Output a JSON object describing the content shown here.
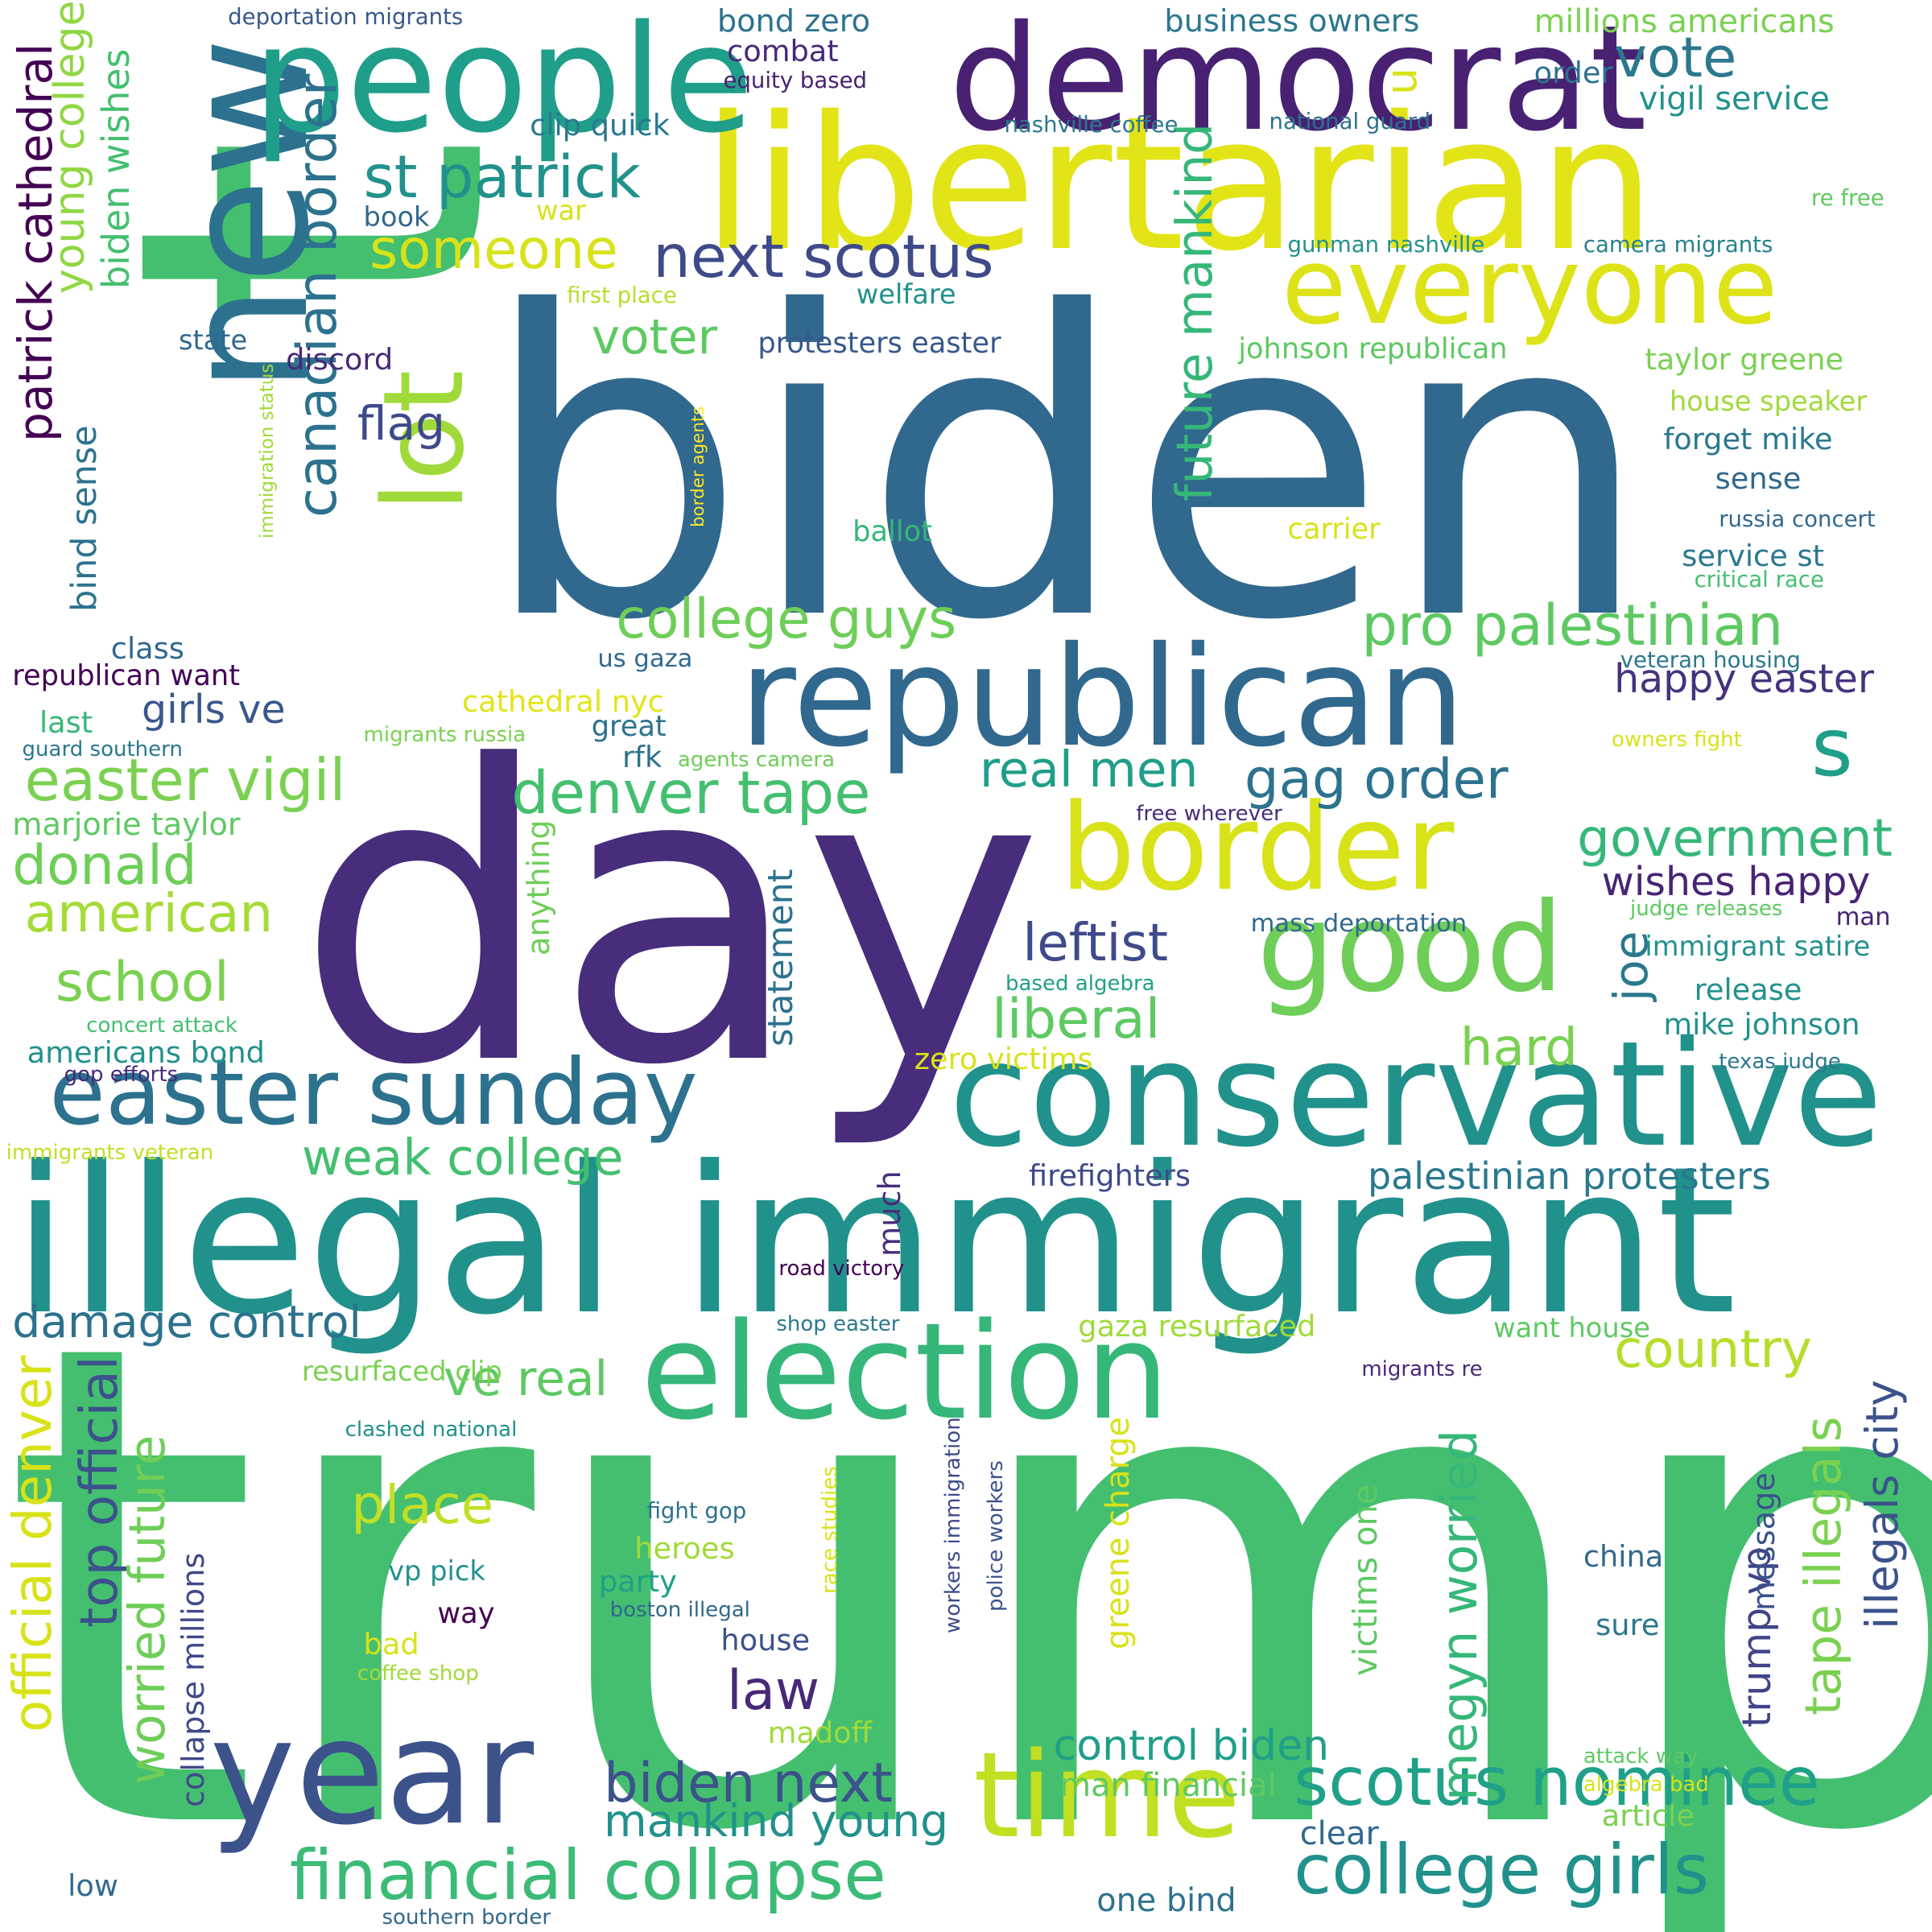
{
  "words": [
    {
      "text": "biden",
      "color": "#31688e"
    },
    {
      "text": "trump",
      "color": "#44bf70"
    },
    {
      "text": "day",
      "color": "#472d7b"
    },
    {
      "text": "t",
      "color": "#44bf70"
    },
    {
      "text": "libertarian",
      "color": "#e2e418"
    },
    {
      "text": "illegal immigrant",
      "color": "#21918c"
    },
    {
      "text": "new",
      "color": "#2c728e"
    },
    {
      "text": "democrat",
      "color": "#482173"
    },
    {
      "text": "people",
      "color": "#1f9e89"
    },
    {
      "text": "republican",
      "color": "#31688e"
    },
    {
      "text": "conservative",
      "color": "#21918c"
    },
    {
      "text": "year",
      "color": "#3b528b"
    },
    {
      "text": "election",
      "color": "#35b779"
    },
    {
      "text": "time",
      "color": "#c2df23"
    },
    {
      "text": "border",
      "color": "#d8e219"
    },
    {
      "text": "good",
      "color": "#6ece58"
    },
    {
      "text": "everyone",
      "color": "#dde318"
    },
    {
      "text": "easter sunday",
      "color": "#2c728e"
    },
    {
      "text": "lot",
      "color": "#9fda3a"
    },
    {
      "text": "s",
      "color": "#1f9e89"
    },
    {
      "text": "u",
      "color": "#d8e219"
    },
    {
      "text": "financial collapse",
      "color": "#3bbb75"
    },
    {
      "text": "college girls",
      "color": "#21918c"
    },
    {
      "text": "scotus nominee",
      "color": "#1fa088"
    },
    {
      "text": "st patrick",
      "color": "#21918c"
    },
    {
      "text": "next scotus",
      "color": "#3e4a89"
    },
    {
      "text": "vote",
      "color": "#2a788e"
    },
    {
      "text": "someone",
      "color": "#d8e219"
    },
    {
      "text": "college guys",
      "color": "#6ece58"
    },
    {
      "text": "pro palestinian",
      "color": "#5ec962"
    },
    {
      "text": "easter vigil",
      "color": "#7ad151"
    },
    {
      "text": "denver tape",
      "color": "#44bf70"
    },
    {
      "text": "gag order",
      "color": "#2c728e"
    },
    {
      "text": "real men",
      "color": "#1f9e89"
    },
    {
      "text": "government",
      "color": "#35b779"
    },
    {
      "text": "american",
      "color": "#a5db36"
    },
    {
      "text": "school",
      "color": "#7ad151"
    },
    {
      "text": "donald",
      "color": "#6ece58"
    },
    {
      "text": "leftist",
      "color": "#3e4a89"
    },
    {
      "text": "liberal",
      "color": "#5ec962"
    },
    {
      "text": "hard",
      "color": "#7ad151"
    },
    {
      "text": "country",
      "color": "#b5de2b"
    },
    {
      "text": "weak college",
      "color": "#44bf70"
    },
    {
      "text": "damage control",
      "color": "#2c728e"
    },
    {
      "text": "ve real",
      "color": "#5ec962"
    },
    {
      "text": "place",
      "color": "#c2df23"
    },
    {
      "text": "law",
      "color": "#482878"
    },
    {
      "text": "biden next",
      "color": "#3b528b"
    },
    {
      "text": "mankind young",
      "color": "#21918c"
    },
    {
      "text": "control biden",
      "color": "#1f9e89"
    },
    {
      "text": "flag",
      "color": "#3e4a89"
    },
    {
      "text": "voter",
      "color": "#5ec962"
    },
    {
      "text": "girls ve",
      "color": "#38588c"
    },
    {
      "text": "happy easter",
      "color": "#46327e"
    },
    {
      "text": "wishes happy",
      "color": "#482475"
    },
    {
      "text": "palestinian protesters",
      "color": "#2a788e"
    },
    {
      "text": "patrick cathedral",
      "color": "#440154"
    },
    {
      "text": "canadian border",
      "color": "#2c728e"
    },
    {
      "text": "future mankind",
      "color": "#35b779"
    },
    {
      "text": "young college",
      "color": "#90d743"
    },
    {
      "text": "biden wishes",
      "color": "#44bf70"
    },
    {
      "text": "bind sense",
      "color": "#2c728e"
    },
    {
      "text": "official denver",
      "color": "#d8e219"
    },
    {
      "text": "top official",
      "color": "#3b528b"
    },
    {
      "text": "worried future",
      "color": "#6ece58"
    },
    {
      "text": "megyn worried",
      "color": "#35b779"
    },
    {
      "text": "tape illegals",
      "color": "#7ad151"
    },
    {
      "text": "illegals city",
      "color": "#3b528b"
    },
    {
      "text": "trump vp",
      "color": "#414487"
    },
    {
      "text": "joe",
      "color": "#2a788e"
    },
    {
      "text": "statement",
      "color": "#2c728e"
    },
    {
      "text": "anything",
      "color": "#6ece58"
    },
    {
      "text": "much",
      "color": "#472d7b"
    },
    {
      "text": "greene charge",
      "color": "#d8e219"
    },
    {
      "text": "victims one",
      "color": "#5ec962"
    },
    {
      "text": "collapse millions",
      "color": "#3e4a89"
    },
    {
      "text": "message",
      "color": "#3b528b"
    },
    {
      "text": "bond zero",
      "color": "#2c728e"
    },
    {
      "text": "business owners",
      "color": "#2a788e"
    },
    {
      "text": "millions americans",
      "color": "#7ad151"
    },
    {
      "text": "vigil service",
      "color": "#21918c"
    },
    {
      "text": "order",
      "color": "#2c728e"
    },
    {
      "text": "combat",
      "color": "#482878"
    },
    {
      "text": "equity based",
      "color": "#482173"
    },
    {
      "text": "clip quick",
      "color": "#2a788e"
    },
    {
      "text": "nashville coffee",
      "color": "#2a788e"
    },
    {
      "text": "national guard",
      "color": "#2c728e"
    },
    {
      "text": "deportation migrants",
      "color": "#38588c"
    },
    {
      "text": "book",
      "color": "#31688e"
    },
    {
      "text": "war",
      "color": "#d8e219"
    },
    {
      "text": "first place",
      "color": "#b5de2b"
    },
    {
      "text": "welfare",
      "color": "#21918c"
    },
    {
      "text": "gunman nashville",
      "color": "#21918c"
    },
    {
      "text": "camera migrants",
      "color": "#26828e"
    },
    {
      "text": "re free",
      "color": "#5ec962"
    },
    {
      "text": "state",
      "color": "#31688e"
    },
    {
      "text": "discord",
      "color": "#482878"
    },
    {
      "text": "protesters easter",
      "color": "#38588c"
    },
    {
      "text": "johnson republican",
      "color": "#5ec962"
    },
    {
      "text": "taylor greene",
      "color": "#7ad151"
    },
    {
      "text": "house speaker",
      "color": "#a0da39"
    },
    {
      "text": "forget mike",
      "color": "#2a788e"
    },
    {
      "text": "sense",
      "color": "#31688e"
    },
    {
      "text": "russia concert",
      "color": "#31688e"
    },
    {
      "text": "ballot",
      "color": "#35b779"
    },
    {
      "text": "carrier",
      "color": "#d8e219"
    },
    {
      "text": "service st",
      "color": "#2a788e"
    },
    {
      "text": "critical race",
      "color": "#44bf70"
    },
    {
      "text": "immigration status",
      "color": "#a0da39"
    },
    {
      "text": "border agents",
      "color": "#fde725"
    },
    {
      "text": "class",
      "color": "#31688e"
    },
    {
      "text": "republican want",
      "color": "#440154"
    },
    {
      "text": "us gaza",
      "color": "#31688e"
    },
    {
      "text": "veteran housing",
      "color": "#2a788e"
    },
    {
      "text": "cathedral nyc",
      "color": "#e2e418"
    },
    {
      "text": "last",
      "color": "#35b779"
    },
    {
      "text": "great",
      "color": "#2c728e"
    },
    {
      "text": "migrants russia",
      "color": "#7ad151"
    },
    {
      "text": "rfk",
      "color": "#2c728e"
    },
    {
      "text": "agents camera",
      "color": "#6ece58"
    },
    {
      "text": "owners fight",
      "color": "#d8e219"
    },
    {
      "text": "guard southern",
      "color": "#2a788e"
    },
    {
      "text": "marjorie taylor",
      "color": "#5ec962"
    },
    {
      "text": "free wherever",
      "color": "#472d7b"
    },
    {
      "text": "mass deportation",
      "color": "#31688e"
    },
    {
      "text": "judge releases",
      "color": "#5ec962"
    },
    {
      "text": "man",
      "color": "#482475"
    },
    {
      "text": "immigrant satire",
      "color": "#21918c"
    },
    {
      "text": "release",
      "color": "#21918c"
    },
    {
      "text": "based algebra",
      "color": "#1fa088"
    },
    {
      "text": "mike johnson",
      "color": "#21918c"
    },
    {
      "text": "concert attack",
      "color": "#44bf70"
    },
    {
      "text": "americans bond",
      "color": "#21918c"
    },
    {
      "text": "zero victims",
      "color": "#d8e219"
    },
    {
      "text": "texas judge",
      "color": "#2a788e"
    },
    {
      "text": "gop efforts",
      "color": "#482878"
    },
    {
      "text": "immigrants veteran",
      "color": "#c2df23"
    },
    {
      "text": "firefighters",
      "color": "#3e4a89"
    },
    {
      "text": "road victory",
      "color": "#440154"
    },
    {
      "text": "shop easter",
      "color": "#2a788e"
    },
    {
      "text": "gaza resurfaced",
      "color": "#a0da39"
    },
    {
      "text": "want house",
      "color": "#5ec962"
    },
    {
      "text": "resurfaced clip",
      "color": "#7ad151"
    },
    {
      "text": "migrants re",
      "color": "#482878"
    },
    {
      "text": "clashed national",
      "color": "#21918c"
    },
    {
      "text": "workers immigration",
      "color": "#3e4a89"
    },
    {
      "text": "police workers",
      "color": "#3b528b"
    },
    {
      "text": "race studies",
      "color": "#d8e219"
    },
    {
      "text": "fight gop",
      "color": "#2c728e"
    },
    {
      "text": "heroes",
      "color": "#a0da39"
    },
    {
      "text": "china",
      "color": "#31688e"
    },
    {
      "text": "vp pick",
      "color": "#21918c"
    },
    {
      "text": "party",
      "color": "#1fa088"
    },
    {
      "text": "way",
      "color": "#440154"
    },
    {
      "text": "boston illegal",
      "color": "#31688e"
    },
    {
      "text": "house",
      "color": "#3b528b"
    },
    {
      "text": "sure",
      "color": "#2a788e"
    },
    {
      "text": "bad",
      "color": "#d8e219"
    },
    {
      "text": "coffee shop",
      "color": "#a0da39"
    },
    {
      "text": "madoff",
      "color": "#9fda3a"
    },
    {
      "text": "attack way",
      "color": "#5ec962"
    },
    {
      "text": "algebra bad",
      "color": "#d8e219"
    },
    {
      "text": "man financial",
      "color": "#5ec962"
    },
    {
      "text": "article",
      "color": "#7ad151"
    },
    {
      "text": "clear",
      "color": "#31688e"
    },
    {
      "text": "low",
      "color": "#31688e"
    },
    {
      "text": "one bind",
      "color": "#2c728e"
    },
    {
      "text": "southern border",
      "color": "#31688e"
    }
  ]
}
